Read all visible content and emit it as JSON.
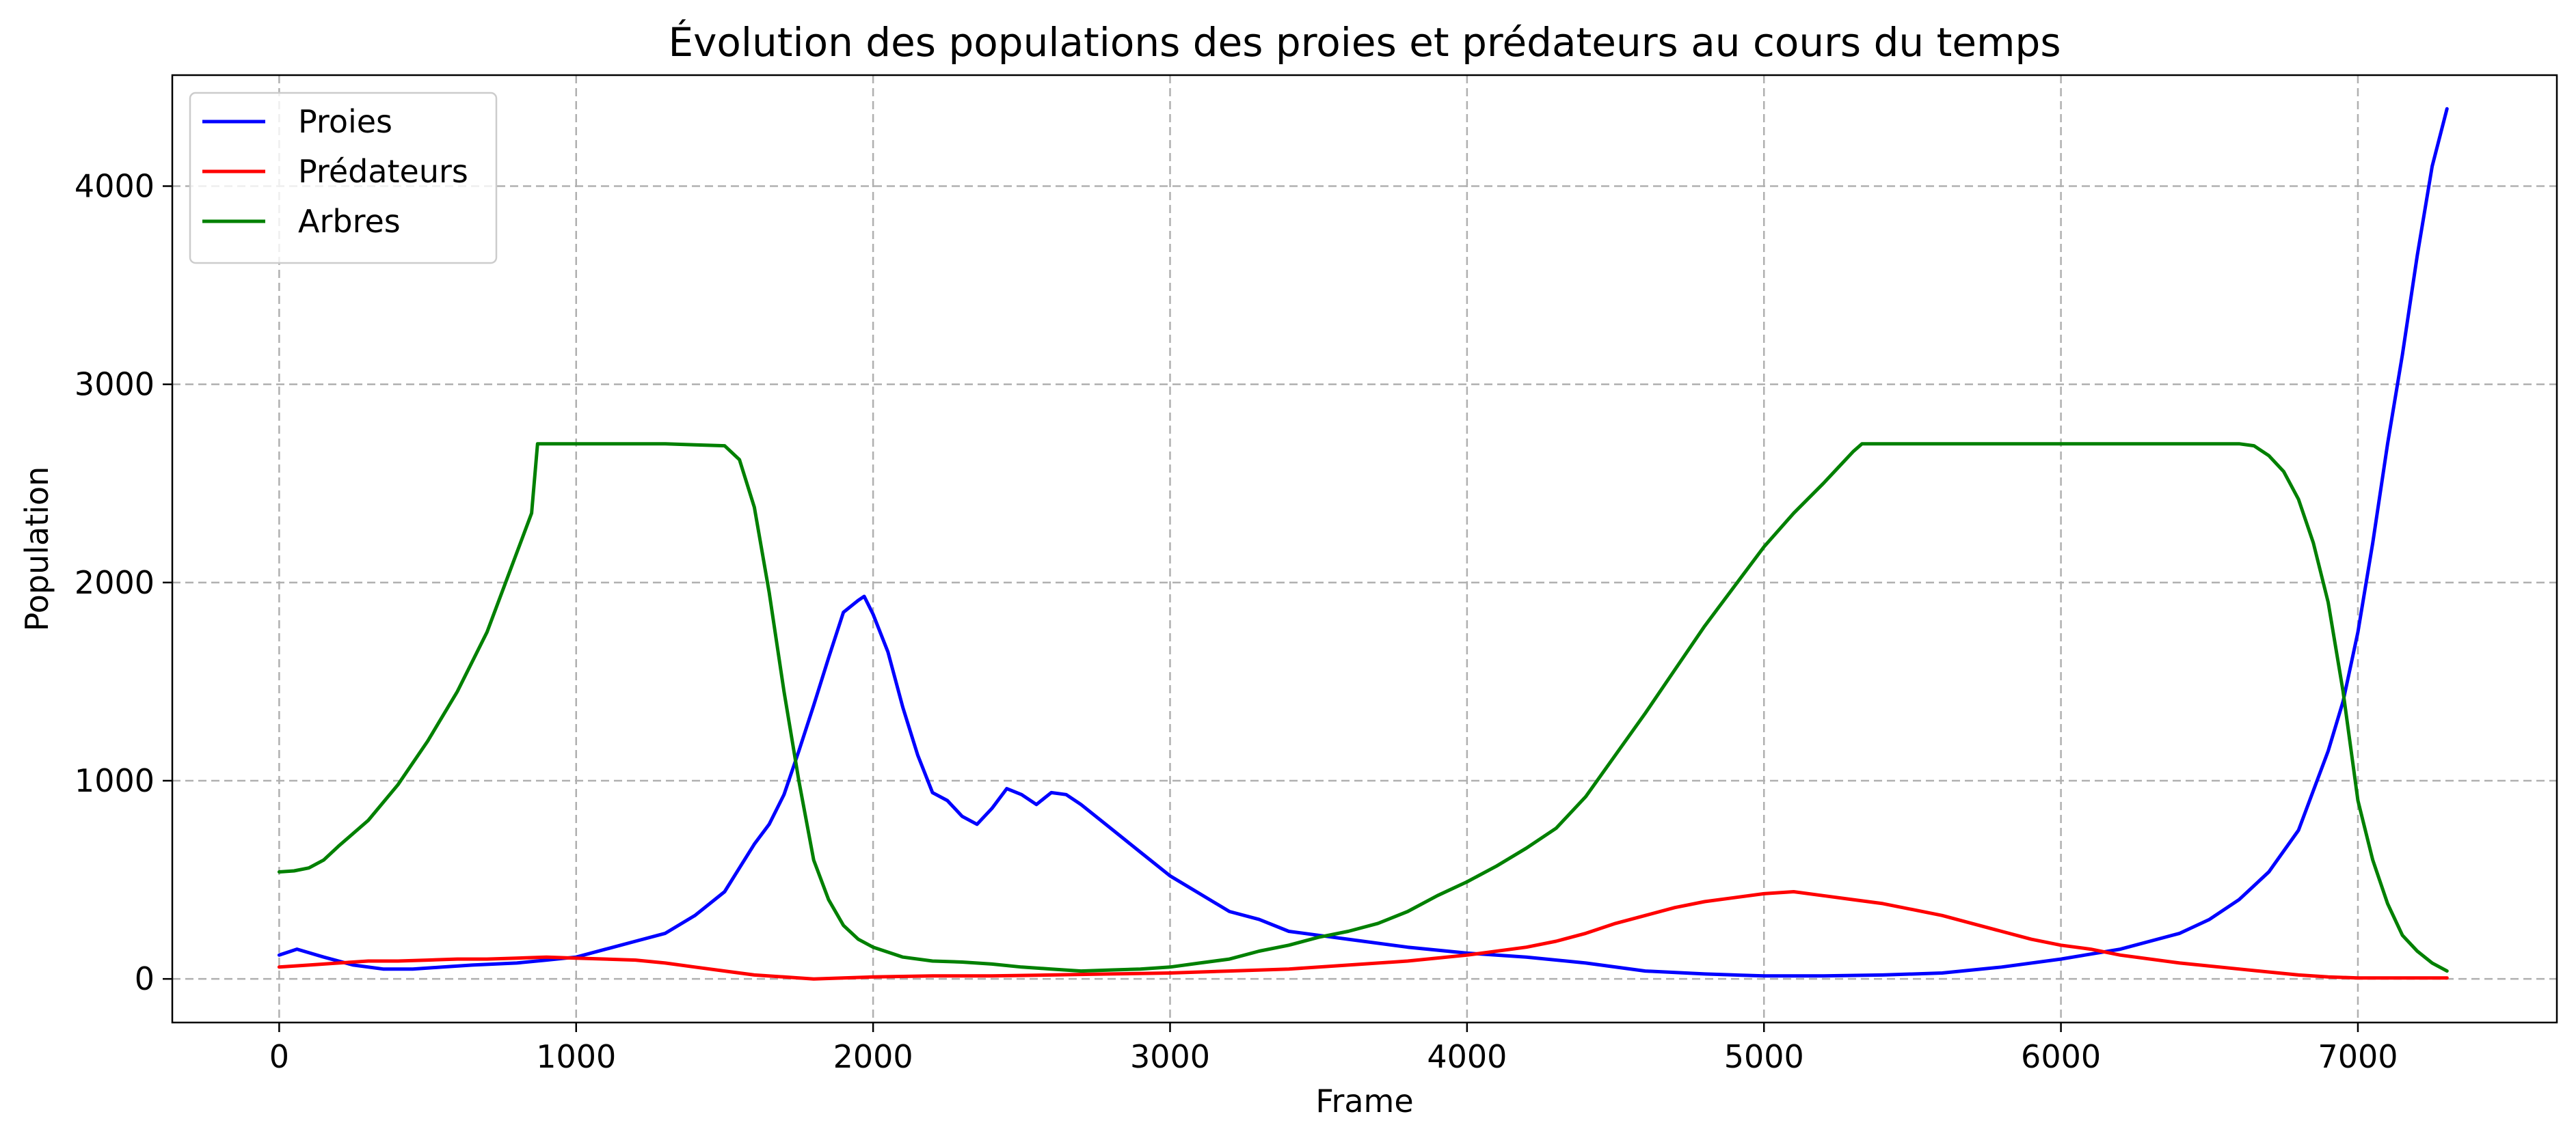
{
  "chart_data": {
    "type": "line",
    "title": "Évolution des populations des proies et prédateurs au cours du temps",
    "xlabel": "Frame",
    "ylabel": "Population",
    "xlim": [
      -360,
      7670
    ],
    "ylim": [
      -220,
      4560
    ],
    "xticks": [
      0,
      1000,
      2000,
      3000,
      4000,
      5000,
      6000,
      7000
    ],
    "yticks": [
      0,
      1000,
      2000,
      3000,
      4000
    ],
    "grid": true,
    "legend": "top-left",
    "series": [
      {
        "name": "Proies",
        "color": "#0000ff",
        "points": [
          [
            0,
            120
          ],
          [
            60,
            150
          ],
          [
            150,
            110
          ],
          [
            250,
            70
          ],
          [
            350,
            50
          ],
          [
            450,
            50
          ],
          [
            550,
            60
          ],
          [
            650,
            70
          ],
          [
            800,
            80
          ],
          [
            900,
            95
          ],
          [
            1000,
            110
          ],
          [
            1100,
            150
          ],
          [
            1200,
            190
          ],
          [
            1300,
            230
          ],
          [
            1400,
            320
          ],
          [
            1500,
            440
          ],
          [
            1550,
            560
          ],
          [
            1600,
            680
          ],
          [
            1650,
            780
          ],
          [
            1700,
            930
          ],
          [
            1750,
            1150
          ],
          [
            1800,
            1380
          ],
          [
            1850,
            1620
          ],
          [
            1900,
            1850
          ],
          [
            1950,
            1910
          ],
          [
            1970,
            1930
          ],
          [
            2000,
            1840
          ],
          [
            2050,
            1650
          ],
          [
            2100,
            1370
          ],
          [
            2150,
            1130
          ],
          [
            2200,
            940
          ],
          [
            2250,
            900
          ],
          [
            2300,
            820
          ],
          [
            2350,
            780
          ],
          [
            2400,
            860
          ],
          [
            2450,
            960
          ],
          [
            2500,
            930
          ],
          [
            2550,
            880
          ],
          [
            2600,
            940
          ],
          [
            2650,
            930
          ],
          [
            2700,
            880
          ],
          [
            2800,
            760
          ],
          [
            2900,
            640
          ],
          [
            3000,
            520
          ],
          [
            3100,
            430
          ],
          [
            3200,
            340
          ],
          [
            3300,
            300
          ],
          [
            3400,
            240
          ],
          [
            3500,
            220
          ],
          [
            3600,
            200
          ],
          [
            3800,
            160
          ],
          [
            4000,
            130
          ],
          [
            4200,
            110
          ],
          [
            4400,
            80
          ],
          [
            4600,
            40
          ],
          [
            4800,
            25
          ],
          [
            5000,
            15
          ],
          [
            5200,
            15
          ],
          [
            5400,
            20
          ],
          [
            5600,
            30
          ],
          [
            5800,
            60
          ],
          [
            6000,
            100
          ],
          [
            6200,
            150
          ],
          [
            6400,
            230
          ],
          [
            6500,
            300
          ],
          [
            6600,
            400
          ],
          [
            6700,
            540
          ],
          [
            6800,
            750
          ],
          [
            6900,
            1150
          ],
          [
            6950,
            1400
          ],
          [
            7000,
            1750
          ],
          [
            7050,
            2200
          ],
          [
            7100,
            2700
          ],
          [
            7150,
            3150
          ],
          [
            7200,
            3650
          ],
          [
            7250,
            4100
          ],
          [
            7300,
            4390
          ]
        ]
      },
      {
        "name": "Prédateurs",
        "color": "#ff0000",
        "points": [
          [
            0,
            60
          ],
          [
            100,
            70
          ],
          [
            200,
            80
          ],
          [
            300,
            90
          ],
          [
            400,
            90
          ],
          [
            500,
            95
          ],
          [
            600,
            100
          ],
          [
            700,
            100
          ],
          [
            800,
            105
          ],
          [
            900,
            110
          ],
          [
            1000,
            105
          ],
          [
            1100,
            100
          ],
          [
            1200,
            95
          ],
          [
            1300,
            80
          ],
          [
            1400,
            60
          ],
          [
            1500,
            40
          ],
          [
            1600,
            20
          ],
          [
            1700,
            10
          ],
          [
            1800,
            0
          ],
          [
            1900,
            5
          ],
          [
            2000,
            10
          ],
          [
            2200,
            15
          ],
          [
            2400,
            15
          ],
          [
            2600,
            20
          ],
          [
            2800,
            25
          ],
          [
            3000,
            30
          ],
          [
            3200,
            40
          ],
          [
            3400,
            50
          ],
          [
            3600,
            70
          ],
          [
            3800,
            90
          ],
          [
            4000,
            120
          ],
          [
            4200,
            160
          ],
          [
            4300,
            190
          ],
          [
            4400,
            230
          ],
          [
            4500,
            280
          ],
          [
            4600,
            320
          ],
          [
            4700,
            360
          ],
          [
            4800,
            390
          ],
          [
            4900,
            410
          ],
          [
            5000,
            430
          ],
          [
            5100,
            440
          ],
          [
            5200,
            420
          ],
          [
            5300,
            400
          ],
          [
            5400,
            380
          ],
          [
            5500,
            350
          ],
          [
            5600,
            320
          ],
          [
            5700,
            280
          ],
          [
            5800,
            240
          ],
          [
            5900,
            200
          ],
          [
            6000,
            170
          ],
          [
            6100,
            150
          ],
          [
            6200,
            120
          ],
          [
            6400,
            80
          ],
          [
            6600,
            50
          ],
          [
            6800,
            20
          ],
          [
            6900,
            10
          ],
          [
            7000,
            5
          ],
          [
            7300,
            5
          ]
        ]
      },
      {
        "name": "Arbres",
        "color": "#008000",
        "points": [
          [
            0,
            540
          ],
          [
            50,
            545
          ],
          [
            100,
            560
          ],
          [
            150,
            600
          ],
          [
            200,
            670
          ],
          [
            300,
            800
          ],
          [
            400,
            980
          ],
          [
            500,
            1200
          ],
          [
            600,
            1450
          ],
          [
            700,
            1750
          ],
          [
            800,
            2150
          ],
          [
            850,
            2350
          ],
          [
            870,
            2700
          ],
          [
            1000,
            2700
          ],
          [
            1100,
            2700
          ],
          [
            1200,
            2700
          ],
          [
            1300,
            2700
          ],
          [
            1400,
            2695
          ],
          [
            1500,
            2690
          ],
          [
            1550,
            2620
          ],
          [
            1600,
            2380
          ],
          [
            1650,
            1950
          ],
          [
            1700,
            1450
          ],
          [
            1750,
            1000
          ],
          [
            1800,
            600
          ],
          [
            1850,
            400
          ],
          [
            1900,
            270
          ],
          [
            1950,
            200
          ],
          [
            2000,
            160
          ],
          [
            2100,
            110
          ],
          [
            2200,
            90
          ],
          [
            2300,
            85
          ],
          [
            2400,
            75
          ],
          [
            2500,
            60
          ],
          [
            2600,
            50
          ],
          [
            2700,
            40
          ],
          [
            2800,
            45
          ],
          [
            2900,
            50
          ],
          [
            3000,
            60
          ],
          [
            3100,
            80
          ],
          [
            3200,
            100
          ],
          [
            3300,
            140
          ],
          [
            3400,
            170
          ],
          [
            3500,
            210
          ],
          [
            3600,
            240
          ],
          [
            3700,
            280
          ],
          [
            3800,
            340
          ],
          [
            3900,
            420
          ],
          [
            4000,
            490
          ],
          [
            4100,
            570
          ],
          [
            4200,
            660
          ],
          [
            4300,
            760
          ],
          [
            4400,
            920
          ],
          [
            4500,
            1130
          ],
          [
            4600,
            1340
          ],
          [
            4700,
            1560
          ],
          [
            4800,
            1780
          ],
          [
            4900,
            1980
          ],
          [
            5000,
            2180
          ],
          [
            5100,
            2350
          ],
          [
            5200,
            2500
          ],
          [
            5250,
            2580
          ],
          [
            5300,
            2660
          ],
          [
            5330,
            2700
          ],
          [
            5400,
            2700
          ],
          [
            5600,
            2700
          ],
          [
            5800,
            2700
          ],
          [
            6000,
            2700
          ],
          [
            6200,
            2700
          ],
          [
            6400,
            2700
          ],
          [
            6600,
            2700
          ],
          [
            6650,
            2690
          ],
          [
            6700,
            2640
          ],
          [
            6750,
            2560
          ],
          [
            6800,
            2420
          ],
          [
            6850,
            2200
          ],
          [
            6900,
            1900
          ],
          [
            6950,
            1450
          ],
          [
            7000,
            900
          ],
          [
            7050,
            600
          ],
          [
            7100,
            380
          ],
          [
            7150,
            220
          ],
          [
            7200,
            140
          ],
          [
            7250,
            80
          ],
          [
            7300,
            40
          ]
        ]
      }
    ]
  }
}
